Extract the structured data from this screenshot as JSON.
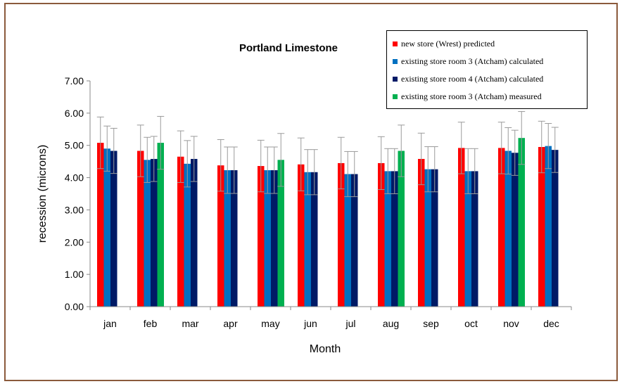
{
  "chart_data": {
    "type": "bar",
    "title": "Portland Limestone",
    "xlabel": "Month",
    "ylabel": "recession (microns)",
    "ylim": [
      0,
      7
    ],
    "yticks": [
      "0.00",
      "1.00",
      "2.00",
      "3.00",
      "4.00",
      "5.00",
      "6.00",
      "7.00"
    ],
    "categories": [
      "jan",
      "feb",
      "mar",
      "apr",
      "may",
      "jun",
      "jul",
      "aug",
      "sep",
      "oct",
      "nov",
      "dec"
    ],
    "legend_position": "top-right",
    "error_bars": true,
    "series": [
      {
        "name": "new store (Wrest) predicted",
        "color": "#ff0000",
        "values": [
          5.08,
          4.83,
          4.65,
          4.38,
          4.36,
          4.41,
          4.45,
          4.45,
          4.58,
          4.92,
          4.92,
          4.95
        ],
        "error": [
          0.8,
          0.8,
          0.8,
          0.8,
          0.8,
          0.82,
          0.8,
          0.82,
          0.8,
          0.8,
          0.8,
          0.8
        ]
      },
      {
        "name": "existing store room 3 (Atcham) calculated",
        "color": "#0070c0",
        "values": [
          4.9,
          4.55,
          4.43,
          4.23,
          4.23,
          4.17,
          4.11,
          4.2,
          4.26,
          4.2,
          4.83,
          4.98
        ],
        "error": [
          0.7,
          0.7,
          0.72,
          0.72,
          0.72,
          0.7,
          0.7,
          0.7,
          0.7,
          0.7,
          0.72,
          0.7
        ]
      },
      {
        "name": "existing store room 4 (Atcham) calculated",
        "color": "#001a66",
        "values": [
          4.83,
          4.58,
          4.58,
          4.23,
          4.23,
          4.17,
          4.11,
          4.2,
          4.26,
          4.2,
          4.77,
          4.86
        ],
        "error": [
          0.7,
          0.7,
          0.7,
          0.72,
          0.72,
          0.7,
          0.7,
          0.7,
          0.7,
          0.7,
          0.7,
          0.7
        ]
      },
      {
        "name": "existing store room 3 (Atcham) measured",
        "color": "#00b050",
        "values": [
          null,
          5.08,
          null,
          null,
          4.55,
          null,
          null,
          4.83,
          null,
          null,
          5.23,
          null
        ],
        "error": [
          null,
          0.82,
          null,
          null,
          0.82,
          null,
          null,
          0.8,
          null,
          null,
          0.82,
          null
        ]
      }
    ]
  }
}
